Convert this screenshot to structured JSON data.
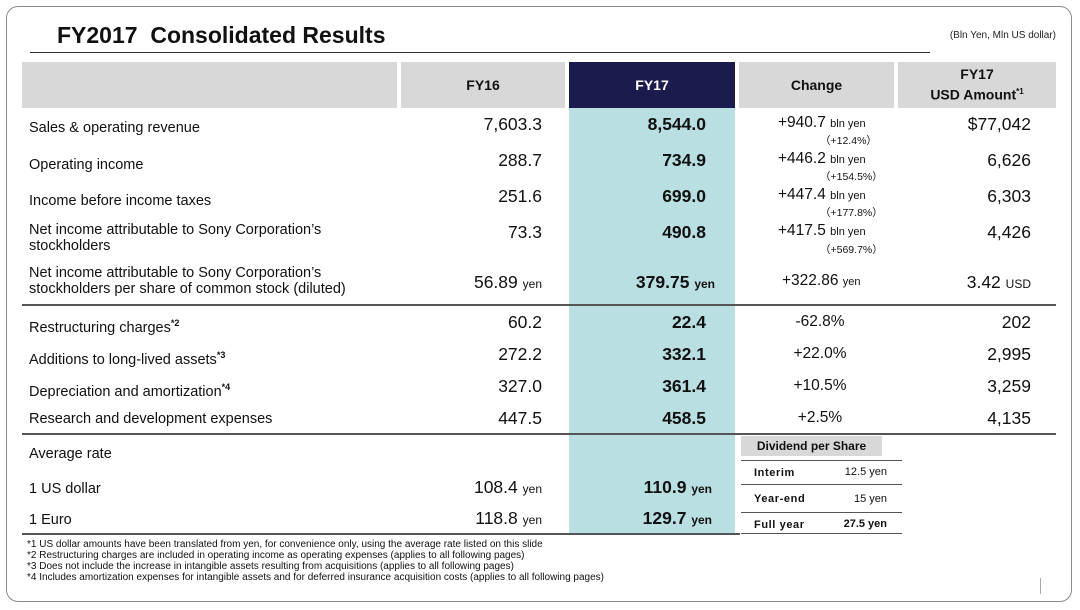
{
  "title": "FY2017  Consolidated Results",
  "units_note": "(Bln Yen, Mln US dollar)",
  "headers": {
    "fy16": "FY16",
    "fy17": "FY17",
    "change": "Change",
    "usd_line1": "FY17",
    "usd_line2": "USD Amount",
    "usd_note": "*1"
  },
  "rows": [
    {
      "label": "Sales & operating revenue",
      "fy16": "7,603.3",
      "fy17": "8,544.0",
      "change": "+940.7",
      "change_unit": "bln yen",
      "pct": "（+12.4%）",
      "usd": "$77,042"
    },
    {
      "label": "Operating income",
      "fy16": "288.7",
      "fy17": "734.9",
      "change": "+446.2",
      "change_unit": "bln yen",
      "pct": "（+154.5%）",
      "usd": "6,626"
    },
    {
      "label": "Income before income taxes",
      "fy16": "251.6",
      "fy17": "699.0",
      "change": "+447.4",
      "change_unit": "bln yen",
      "pct": "（+177.8%）",
      "usd": "6,303"
    },
    {
      "label_line1": "Net income attributable to Sony Corporation’s",
      "label_line2": "stockholders",
      "fy16": "73.3",
      "fy17": "490.8",
      "change": "+417.5",
      "change_unit": "bln yen",
      "pct": "（+569.7%）",
      "usd": "4,426"
    },
    {
      "label_line1": "Net income attributable to Sony Corporation’s",
      "label_line2": "stockholders per share of common stock (diluted)",
      "fy16": "56.89",
      "fy16_unit": "yen",
      "fy17": "379.75",
      "fy17_unit": "yen",
      "change": "+322.86",
      "change_unit": "yen",
      "usd": "3.42",
      "usd_unit": "USD"
    }
  ],
  "rows2": [
    {
      "label": "Restructuring charges",
      "note": "*2",
      "fy16": "60.2",
      "fy17": "22.4",
      "change": "-62.8%",
      "usd": "202"
    },
    {
      "label": "Additions to long-lived assets",
      "note": "*3",
      "fy16": "272.2",
      "fy17": "332.1",
      "change": "+22.0%",
      "usd": "2,995"
    },
    {
      "label": "Depreciation and amortization",
      "note": "*4",
      "fy16": "327.0",
      "fy17": "361.4",
      "change": "+10.5%",
      "usd": "3,259"
    },
    {
      "label": "Research and development expenses",
      "fy16": "447.5",
      "fy17": "458.5",
      "change": "+2.5%",
      "usd": "4,135"
    }
  ],
  "rates": {
    "heading": "Average rate",
    "usd_label": "1 US dollar",
    "usd_fy16": "108.4",
    "usd_fy17": "110.9",
    "euro_label": "1 Euro",
    "euro_fy16": "118.8",
    "euro_fy17": "129.7",
    "unit": "yen"
  },
  "dividend": {
    "heading": "Dividend per Share",
    "interim_label": "Interim",
    "interim_value": "12.5 yen",
    "yearend_label": "Year-end",
    "yearend_value": "15 yen",
    "fullyear_label": "Full year",
    "fullyear_value": "27.5 yen"
  },
  "footnotes": [
    "*1 US dollar amounts have been translated from yen, for convenience only, using the average rate listed on this slide",
    "*2 Restructuring charges are included in operating income as operating expenses (applies to all following pages)",
    "*3 Does not include the increase in intangible assets resulting from acquisitions (applies to all following pages)",
    "*4 Includes amortization expenses for intangible assets and for deferred insurance acquisition costs (applies to all following pages)"
  ],
  "colors": {
    "fy17_header": "#1b1b4d",
    "fy17_band": "#b9dfe3",
    "header_gray": "#d8d8d8"
  }
}
